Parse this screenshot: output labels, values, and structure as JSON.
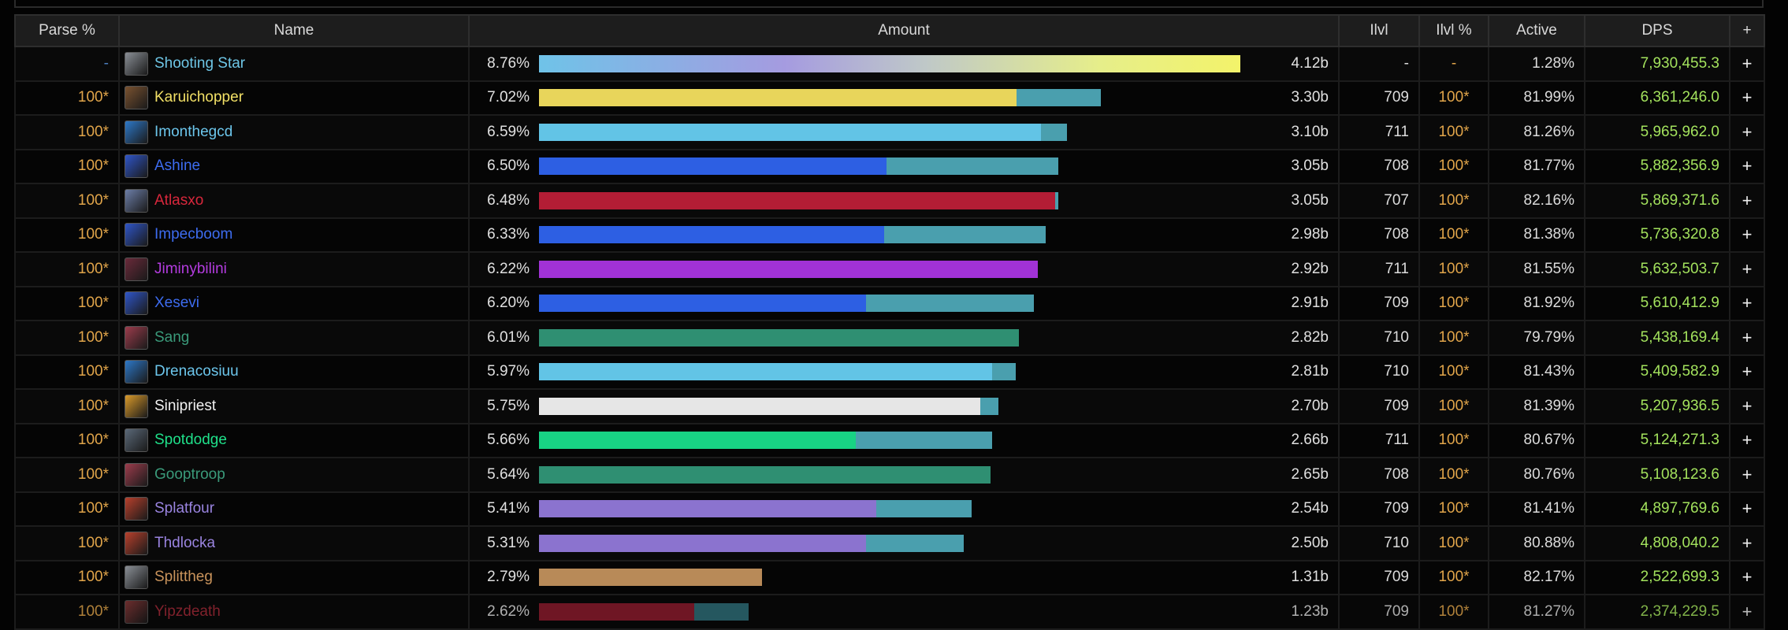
{
  "table": {
    "headers": {
      "parse": "Parse %",
      "name": "Name",
      "amount": "Amount",
      "ilvl": "Ilvl",
      "ilvl_pct": "Ilvl %",
      "active": "Active",
      "dps": "DPS",
      "plus": "+"
    },
    "rows": [
      {
        "parse": "-",
        "name": "Shooting Star",
        "name_color": "#6ec6e6",
        "icon_color": "#8a8f96",
        "pct": "8.76%",
        "share": 1.0,
        "first_part": 1.0,
        "bar_color": "gradient",
        "amount": "4.12b",
        "ilvl": "-",
        "ilvl_pct": "-",
        "active": "1.28%",
        "dps": "7,930,455.3",
        "plus": "+"
      },
      {
        "parse": "100*",
        "name": "Karuichopper",
        "name_color": "#f2e066",
        "icon_color": "#7a5230",
        "pct": "7.02%",
        "share": 0.801,
        "first_part": 0.85,
        "bar_color": "#e8d55b",
        "amount": "3.30b",
        "ilvl": "709",
        "ilvl_pct": "100*",
        "active": "81.99%",
        "dps": "6,361,246.0",
        "plus": "+"
      },
      {
        "parse": "100*",
        "name": "Imonthegcd",
        "name_color": "#6cc6ec",
        "icon_color": "#2d78c8",
        "pct": "6.59%",
        "share": 0.753,
        "first_part": 0.95,
        "bar_color": "#62c4e6",
        "amount": "3.10b",
        "ilvl": "711",
        "ilvl_pct": "100*",
        "active": "81.26%",
        "dps": "5,965,962.0",
        "plus": "+"
      },
      {
        "parse": "100*",
        "name": "Ashine",
        "name_color": "#3d6cf0",
        "icon_color": "#2f55c8",
        "pct": "6.50%",
        "share": 0.74,
        "first_part": 0.67,
        "bar_color": "#2d5fe3",
        "amount": "3.05b",
        "ilvl": "708",
        "ilvl_pct": "100*",
        "active": "81.77%",
        "dps": "5,882,356.9",
        "plus": "+"
      },
      {
        "parse": "100*",
        "name": "Atlasxo",
        "name_color": "#d8273c",
        "icon_color": "#6c7ea8",
        "pct": "6.48%",
        "share": 0.74,
        "first_part": 0.995,
        "bar_color": "#b31d35",
        "amount": "3.05b",
        "ilvl": "707",
        "ilvl_pct": "100*",
        "active": "82.16%",
        "dps": "5,869,371.6",
        "plus": "+"
      },
      {
        "parse": "100*",
        "name": "Impecboom",
        "name_color": "#3d6cf0",
        "icon_color": "#2f55c8",
        "pct": "6.33%",
        "share": 0.723,
        "first_part": 0.68,
        "bar_color": "#2d5fe3",
        "amount": "2.98b",
        "ilvl": "708",
        "ilvl_pct": "100*",
        "active": "81.38%",
        "dps": "5,736,320.8",
        "plus": "+"
      },
      {
        "parse": "100*",
        "name": "Jiminybilini",
        "name_color": "#b43ce0",
        "icon_color": "#6a2a3a",
        "pct": "6.22%",
        "share": 0.711,
        "first_part": 1.0,
        "bar_color": "#a132d6",
        "amount": "2.92b",
        "ilvl": "711",
        "ilvl_pct": "100*",
        "active": "81.55%",
        "dps": "5,632,503.7",
        "plus": "+"
      },
      {
        "parse": "100*",
        "name": "Xesevi",
        "name_color": "#3d6cf0",
        "icon_color": "#2f55c8",
        "pct": "6.20%",
        "share": 0.706,
        "first_part": 0.66,
        "bar_color": "#2d5fe3",
        "amount": "2.91b",
        "ilvl": "709",
        "ilvl_pct": "100*",
        "active": "81.92%",
        "dps": "5,610,412.9",
        "plus": "+"
      },
      {
        "parse": "100*",
        "name": "Sang",
        "name_color": "#3a9a7a",
        "icon_color": "#9c3c4c",
        "pct": "6.01%",
        "share": 0.684,
        "first_part": 1.0,
        "bar_color": "#2f8f72",
        "amount": "2.82b",
        "ilvl": "710",
        "ilvl_pct": "100*",
        "active": "79.79%",
        "dps": "5,438,169.4",
        "plus": "+"
      },
      {
        "parse": "100*",
        "name": "Drenacosiuu",
        "name_color": "#6cc6ec",
        "icon_color": "#2d78c8",
        "pct": "5.97%",
        "share": 0.68,
        "first_part": 0.95,
        "bar_color": "#62c4e6",
        "amount": "2.81b",
        "ilvl": "710",
        "ilvl_pct": "100*",
        "active": "81.43%",
        "dps": "5,409,582.9",
        "plus": "+"
      },
      {
        "parse": "100*",
        "name": "Sinipriest",
        "name_color": "#f2f2f2",
        "icon_color": "#d99a2a",
        "pct": "5.75%",
        "share": 0.655,
        "first_part": 0.96,
        "bar_color": "#e6e6e6",
        "amount": "2.70b",
        "ilvl": "709",
        "ilvl_pct": "100*",
        "active": "81.39%",
        "dps": "5,207,936.5",
        "plus": "+"
      },
      {
        "parse": "100*",
        "name": "Spotdodge",
        "name_color": "#1fe08a",
        "icon_color": "#5a6878",
        "pct": "5.66%",
        "share": 0.646,
        "first_part": 0.7,
        "bar_color": "#18d384",
        "amount": "2.66b",
        "ilvl": "711",
        "ilvl_pct": "100*",
        "active": "80.67%",
        "dps": "5,124,271.3",
        "plus": "+"
      },
      {
        "parse": "100*",
        "name": "Gooptroop",
        "name_color": "#3a9a7a",
        "icon_color": "#9c3c4c",
        "pct": "5.64%",
        "share": 0.644,
        "first_part": 1.0,
        "bar_color": "#2f8f72",
        "amount": "2.65b",
        "ilvl": "708",
        "ilvl_pct": "100*",
        "active": "80.76%",
        "dps": "5,108,123.6",
        "plus": "+"
      },
      {
        "parse": "100*",
        "name": "Splatfour",
        "name_color": "#9a84e0",
        "icon_color": "#b8402c",
        "pct": "5.41%",
        "share": 0.617,
        "first_part": 0.78,
        "bar_color": "#8b73cf",
        "amount": "2.54b",
        "ilvl": "709",
        "ilvl_pct": "100*",
        "active": "81.41%",
        "dps": "4,897,769.6",
        "plus": "+"
      },
      {
        "parse": "100*",
        "name": "Thdlocka",
        "name_color": "#9a84e0",
        "icon_color": "#b8402c",
        "pct": "5.31%",
        "share": 0.606,
        "first_part": 0.77,
        "bar_color": "#8b73cf",
        "amount": "2.50b",
        "ilvl": "710",
        "ilvl_pct": "100*",
        "active": "80.88%",
        "dps": "4,808,040.2",
        "plus": "+"
      },
      {
        "parse": "100*",
        "name": "Splittheg",
        "name_color": "#c9935b",
        "icon_color": "#8a8f96",
        "pct": "2.79%",
        "share": 0.318,
        "first_part": 1.0,
        "bar_color": "#b88a58",
        "amount": "1.31b",
        "ilvl": "709",
        "ilvl_pct": "100*",
        "active": "82.17%",
        "dps": "2,522,699.3",
        "plus": "+"
      },
      {
        "parse": "100*",
        "name": "Yipzdeath",
        "name_color": "#a32a38",
        "icon_color": "#8a3a3a",
        "pct": "2.62%",
        "share": 0.299,
        "first_part": 0.74,
        "bar_color": "#8e1c2e",
        "amount": "1.23b",
        "ilvl": "709",
        "ilvl_pct": "100*",
        "active": "81.27%",
        "dps": "2,374,229.5",
        "plus": "+",
        "faded": true
      }
    ]
  }
}
